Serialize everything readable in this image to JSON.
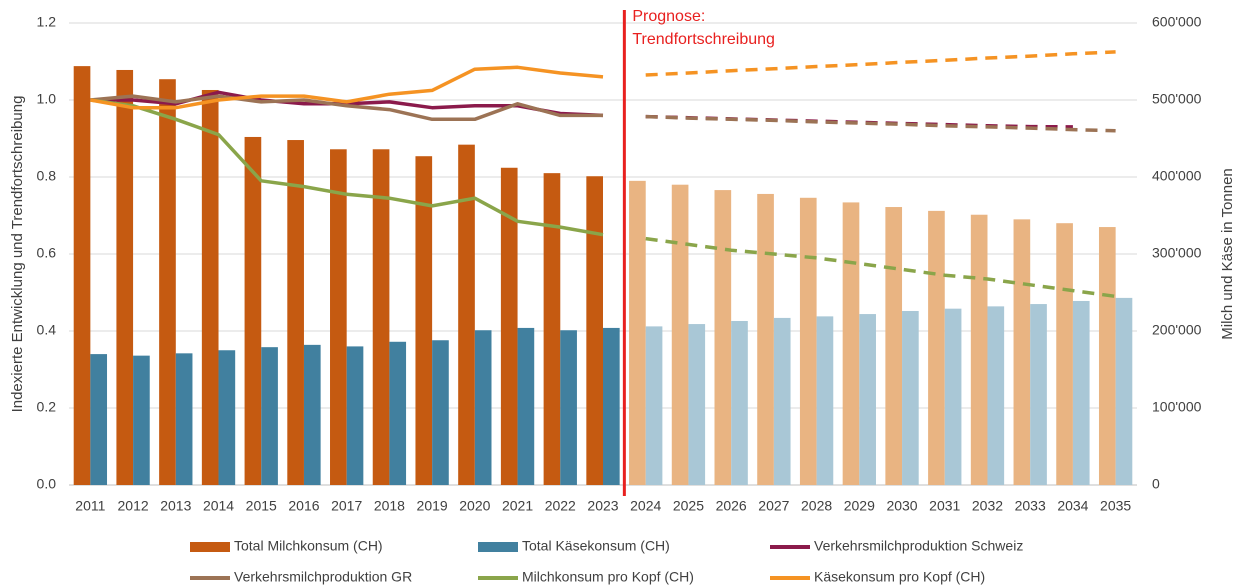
{
  "chart_data": {
    "type": "bar_line",
    "y_axis_label": "Indexierte Entwicklung und Trendfortschreibung",
    "y2_axis_label": "Milch und Käse in Tonnen",
    "annotation": [
      "Prognose:",
      "Trendfortschreibung"
    ],
    "forecast_start": "2024",
    "grid": true,
    "legend": "bottom",
    "categories": [
      "2011",
      "2012",
      "2013",
      "2014",
      "2015",
      "2016",
      "2017",
      "2018",
      "2019",
      "2020",
      "2021",
      "2022",
      "2023",
      "2024",
      "2025",
      "2026",
      "2027",
      "2028",
      "2029",
      "2030",
      "2031",
      "2032",
      "2033",
      "2034",
      "2035"
    ],
    "ylim": [
      0,
      1.2
    ],
    "yticks": [
      {
        "value": 0,
        "label": "0.0"
      },
      0.2,
      0.4,
      0.6,
      0.8,
      {
        "value": 1,
        "label": "1.0"
      },
      1.2
    ],
    "y2lim": [
      0,
      600000
    ],
    "y2ticks": [
      0,
      {
        "value": 100000,
        "label": "100'000"
      },
      {
        "value": 200000,
        "label": "200'000"
      },
      {
        "value": 300000,
        "label": "300'000"
      },
      {
        "value": 400000,
        "label": "400'000"
      },
      {
        "value": 500000,
        "label": "500'000"
      },
      {
        "value": 600000,
        "label": "600'000"
      }
    ],
    "series": [
      {
        "name": "Total Milchkonsum (CH)",
        "kind": "bar",
        "axis": "y2",
        "color": "#c55a11",
        "forecast_color": "#e9b482",
        "values": [
          544000,
          539000,
          527000,
          513000,
          452000,
          448000,
          436000,
          436000,
          427000,
          442000,
          412000,
          405000,
          401000,
          395000,
          390000,
          383000,
          378000,
          373000,
          367000,
          361000,
          356000,
          351000,
          345000,
          340000,
          335000
        ]
      },
      {
        "name": "Total Käsekonsum (CH)",
        "kind": "bar",
        "axis": "y2",
        "color": "#41809f",
        "forecast_color": "#a9c7d6",
        "values": [
          170000,
          168000,
          171000,
          175000,
          179000,
          182000,
          180000,
          186000,
          188000,
          201000,
          204000,
          201000,
          204000,
          206000,
          209000,
          213000,
          217000,
          219000,
          222000,
          226000,
          229000,
          232000,
          235000,
          239000,
          243000
        ]
      },
      {
        "name": "Verkehrsmilchproduktion Schweiz",
        "kind": "line",
        "color": "#8b1a4b",
        "values": [
          1.0,
          1.0,
          0.99,
          1.02,
          1.0,
          0.99,
          0.99,
          0.995,
          0.98,
          0.985,
          0.985,
          0.965,
          0.96,
          0.957,
          0.954,
          0.951,
          0.948,
          0.945,
          0.942,
          0.939,
          0.936,
          0.933,
          0.931,
          0.93,
          null
        ]
      },
      {
        "name": "Verkehrsmilchproduktion GR",
        "kind": "line",
        "color": "#9c7355",
        "values": [
          1.0,
          1.01,
          0.995,
          1.01,
          0.995,
          1.0,
          0.985,
          0.975,
          0.95,
          0.95,
          0.99,
          0.96,
          0.96,
          0.957,
          0.953,
          0.95,
          0.947,
          0.943,
          0.94,
          0.937,
          0.933,
          0.93,
          0.927,
          0.923,
          0.92
        ]
      },
      {
        "name": "Milchkonsum pro Kopf (CH)",
        "kind": "line",
        "color": "#8aa54a",
        "values": [
          1.0,
          0.985,
          0.95,
          0.91,
          0.79,
          0.775,
          0.755,
          0.745,
          0.725,
          0.745,
          0.685,
          0.67,
          0.65,
          0.64,
          0.625,
          0.61,
          0.6,
          0.59,
          0.575,
          0.56,
          0.545,
          0.535,
          0.52,
          0.505,
          0.49
        ]
      },
      {
        "name": "Käsekonsum pro Kopf (CH)",
        "kind": "line",
        "color": "#f59323",
        "values": [
          1.0,
          0.98,
          0.98,
          1.0,
          1.01,
          1.01,
          0.995,
          1.015,
          1.025,
          1.08,
          1.085,
          1.07,
          1.06,
          1.065,
          1.07,
          1.076,
          1.081,
          1.087,
          1.092,
          1.098,
          1.103,
          1.109,
          1.114,
          1.12,
          1.125
        ]
      }
    ]
  }
}
